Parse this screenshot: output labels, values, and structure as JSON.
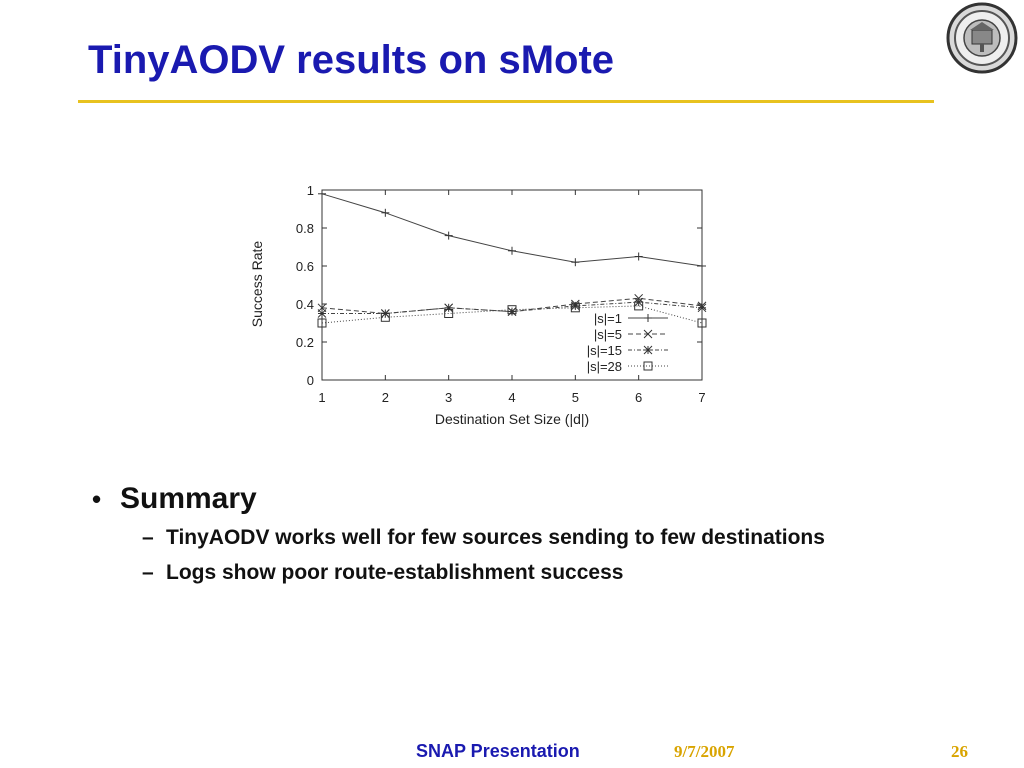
{
  "slide": {
    "title": "TinyAODV results on sMote"
  },
  "bullets": {
    "main": "Summary",
    "sub": [
      "TinyAODV works well for few sources sending to few destinations",
      "Logs show poor route-establishment success"
    ]
  },
  "footer": {
    "left": "SNAP Presentation",
    "date": "9/7/2007",
    "page": "26"
  },
  "logo": {
    "icon": "university-seal-icon"
  },
  "chart_data": {
    "type": "line",
    "title": "",
    "xlabel": "Destination Set Size (|d|)",
    "ylabel": "Success Rate",
    "x": [
      1,
      2,
      3,
      4,
      5,
      6,
      7
    ],
    "xlim": [
      1,
      7
    ],
    "ylim": [
      0,
      1
    ],
    "xticks": [
      "1",
      "2",
      "3",
      "4",
      "5",
      "6",
      "7"
    ],
    "yticks": [
      "0",
      "0.2",
      "0.4",
      "0.6",
      "0.8",
      "1"
    ],
    "grid": false,
    "legend_position": "inside-bottom-right",
    "series": [
      {
        "name": "|s|=1",
        "marker": "plus",
        "dash": "solid",
        "values": [
          0.98,
          0.88,
          0.76,
          0.68,
          0.62,
          0.65,
          0.6
        ]
      },
      {
        "name": "|s|=5",
        "marker": "cross",
        "dash": "dashed",
        "values": [
          0.38,
          0.35,
          0.38,
          0.36,
          0.4,
          0.43,
          0.39
        ]
      },
      {
        "name": "|s|=15",
        "marker": "star",
        "dash": "dotdash",
        "values": [
          0.35,
          0.35,
          0.38,
          0.36,
          0.39,
          0.41,
          0.38
        ]
      },
      {
        "name": "|s|=28",
        "marker": "square",
        "dash": "dotted",
        "values": [
          0.3,
          0.33,
          0.35,
          0.37,
          0.38,
          0.39,
          0.3
        ]
      }
    ]
  }
}
